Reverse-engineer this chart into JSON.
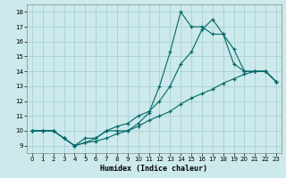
{
  "xlabel": "Humidex (Indice chaleur)",
  "bg_color": "#cce9ec",
  "grid_color": "#aacfd4",
  "line_color": "#006868",
  "xlim": [
    -0.5,
    23.5
  ],
  "ylim": [
    8.5,
    18.5
  ],
  "xticks": [
    0,
    1,
    2,
    3,
    4,
    5,
    6,
    7,
    8,
    9,
    10,
    11,
    12,
    13,
    14,
    15,
    16,
    17,
    18,
    19,
    20,
    21,
    22,
    23
  ],
  "yticks": [
    9,
    10,
    11,
    12,
    13,
    14,
    15,
    16,
    17,
    18
  ],
  "line1_x": [
    0,
    1,
    2,
    3,
    4,
    5,
    6,
    7,
    8,
    9,
    10,
    11,
    12,
    13,
    14,
    15,
    16,
    17,
    18,
    19,
    20,
    21,
    22,
    23
  ],
  "line1_y": [
    10,
    10,
    10,
    9.5,
    9.0,
    9.5,
    9.5,
    10,
    10,
    10,
    10.5,
    11.2,
    13,
    15.3,
    18,
    17,
    17,
    16.5,
    16.5,
    15.5,
    14,
    14,
    14,
    13.3
  ],
  "line2_x": [
    0,
    1,
    2,
    3,
    4,
    5,
    6,
    7,
    8,
    9,
    10,
    11,
    12,
    13,
    14,
    15,
    16,
    17,
    18,
    19,
    20,
    21,
    22,
    23
  ],
  "line2_y": [
    10,
    10,
    10,
    9.5,
    9.0,
    9.2,
    9.5,
    10,
    10.3,
    10.5,
    11,
    11.3,
    12,
    13,
    14.5,
    15.3,
    16.8,
    17.5,
    16.5,
    14.5,
    14,
    14,
    14,
    13.3
  ],
  "line3_x": [
    0,
    1,
    2,
    3,
    4,
    5,
    6,
    7,
    8,
    9,
    10,
    11,
    12,
    13,
    14,
    15,
    16,
    17,
    18,
    19,
    20,
    21,
    22,
    23
  ],
  "line3_y": [
    10,
    10,
    10,
    9.5,
    9.0,
    9.2,
    9.3,
    9.5,
    9.8,
    10,
    10.3,
    10.7,
    11,
    11.3,
    11.8,
    12.2,
    12.5,
    12.8,
    13.2,
    13.5,
    13.8,
    14,
    14,
    13.3
  ]
}
